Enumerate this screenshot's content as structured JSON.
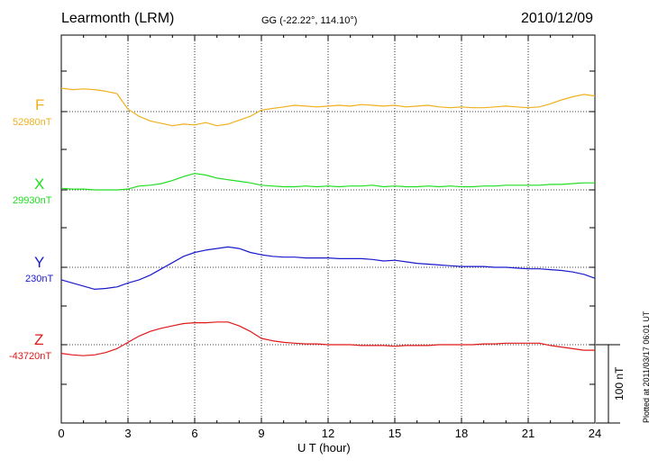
{
  "header": {
    "station": "Learmonth (LRM)",
    "coords": "GG (-22.22°, 114.10°)",
    "date": "2010/12/09"
  },
  "footer": {
    "plotted": "Plotted at 2011/03/17 06:01  UT",
    "scale_label": "100 nT"
  },
  "chart_data": {
    "type": "line",
    "title": "",
    "xlabel": "U T (hour)",
    "ylabel": "",
    "xlim": [
      0,
      24
    ],
    "x_ticks": [
      "0",
      "3",
      "6",
      "9",
      "12",
      "15",
      "18",
      "21",
      "24"
    ],
    "grid": true,
    "scale_bar_nT": 100,
    "series": [
      {
        "name": "F",
        "baseline": "52980nT",
        "baseline_nT": 52980,
        "color": "#f0b020",
        "x": [
          0,
          0.5,
          1,
          1.5,
          2,
          2.5,
          3,
          3.5,
          4,
          4.5,
          5,
          5.5,
          6,
          6.5,
          7,
          7.5,
          8,
          8.5,
          9,
          9.5,
          10,
          10.5,
          11,
          11.5,
          12,
          12.5,
          13,
          13.5,
          14,
          14.5,
          15,
          15.5,
          16,
          16.5,
          17,
          17.5,
          18,
          18.5,
          19,
          19.5,
          20,
          20.5,
          21,
          21.5,
          22,
          22.5,
          23,
          23.5,
          24
        ],
        "y": [
          30,
          28,
          29,
          28,
          26,
          23,
          3,
          -6,
          -12,
          -15,
          -18,
          -16,
          -17,
          -14,
          -18,
          -16,
          -11,
          -6,
          2,
          4,
          6,
          8,
          7,
          6,
          7,
          8,
          7,
          9,
          8,
          7,
          8,
          6,
          7,
          8,
          6,
          5,
          6,
          5,
          5,
          6,
          7,
          6,
          5,
          6,
          10,
          15,
          19,
          22,
          20
        ]
      },
      {
        "name": "X",
        "baseline": "29930nT",
        "baseline_nT": 29930,
        "color": "#20dd20",
        "x": [
          0,
          0.5,
          1,
          1.5,
          2,
          2.5,
          3,
          3.5,
          4,
          4.5,
          5,
          5.5,
          6,
          6.5,
          7,
          7.5,
          8,
          8.5,
          9,
          9.5,
          10,
          10.5,
          11,
          11.5,
          12,
          12.5,
          13,
          13.5,
          14,
          14.5,
          15,
          15.5,
          16,
          16.5,
          17,
          17.5,
          18,
          18.5,
          19,
          19.5,
          20,
          20.5,
          21,
          21.5,
          22,
          22.5,
          23,
          23.5,
          24
        ],
        "y": [
          2,
          1,
          1,
          0,
          0,
          0,
          1,
          5,
          6,
          8,
          12,
          17,
          21,
          19,
          15,
          13,
          11,
          9,
          6,
          5,
          4,
          4,
          5,
          4,
          5,
          4,
          5,
          5,
          6,
          4,
          5,
          4,
          4,
          5,
          4,
          5,
          4,
          4,
          5,
          5,
          6,
          6,
          6,
          6,
          7,
          7,
          8,
          9,
          9
        ]
      },
      {
        "name": "Y",
        "baseline": "230nT",
        "baseline_nT": 230,
        "color": "#1a1acc",
        "x": [
          0,
          0.5,
          1,
          1.5,
          2,
          2.5,
          3,
          3.5,
          4,
          4.5,
          5,
          5.5,
          6,
          6.5,
          7,
          7.5,
          8,
          8.5,
          9,
          9.5,
          10,
          10.5,
          11,
          11.5,
          12,
          12.5,
          13,
          13.5,
          14,
          14.5,
          15,
          15.5,
          16,
          16.5,
          17,
          17.5,
          18,
          18.5,
          19,
          19.5,
          20,
          20.5,
          21,
          21.5,
          22,
          22.5,
          23,
          23.5,
          24
        ],
        "y": [
          -16,
          -20,
          -24,
          -28,
          -27,
          -25,
          -20,
          -16,
          -10,
          -2,
          6,
          14,
          19,
          22,
          24,
          26,
          24,
          19,
          16,
          14,
          13,
          13,
          12,
          12,
          12,
          11,
          11,
          11,
          10,
          8,
          9,
          7,
          5,
          4,
          3,
          2,
          1,
          1,
          1,
          0,
          0,
          -1,
          -2,
          -2,
          -3,
          -4,
          -6,
          -9,
          -14
        ]
      },
      {
        "name": "Z",
        "baseline": "-43720nT",
        "baseline_nT": -43720,
        "color": "#e01818",
        "x": [
          0,
          0.5,
          1,
          1.5,
          2,
          2.5,
          3,
          3.5,
          4,
          4.5,
          5,
          5.5,
          6,
          6.5,
          7,
          7.5,
          8,
          8.5,
          9,
          9.5,
          10,
          10.5,
          11,
          11.5,
          12,
          12.5,
          13,
          13.5,
          14,
          14.5,
          15,
          15.5,
          16,
          16.5,
          17,
          17.5,
          18,
          18.5,
          19,
          19.5,
          20,
          20.5,
          21,
          21.5,
          22,
          22.5,
          23,
          23.5,
          24
        ],
        "y": [
          -11,
          -13,
          -14,
          -13,
          -10,
          -5,
          3,
          11,
          17,
          21,
          24,
          27,
          28,
          28,
          29,
          29,
          24,
          17,
          8,
          5,
          3,
          2,
          1,
          1,
          0,
          0,
          0,
          -1,
          -1,
          -1,
          -2,
          -1,
          -1,
          -1,
          0,
          0,
          0,
          0,
          1,
          1,
          2,
          2,
          2,
          2,
          -1,
          -3,
          -5,
          -7,
          -7
        ]
      }
    ]
  }
}
